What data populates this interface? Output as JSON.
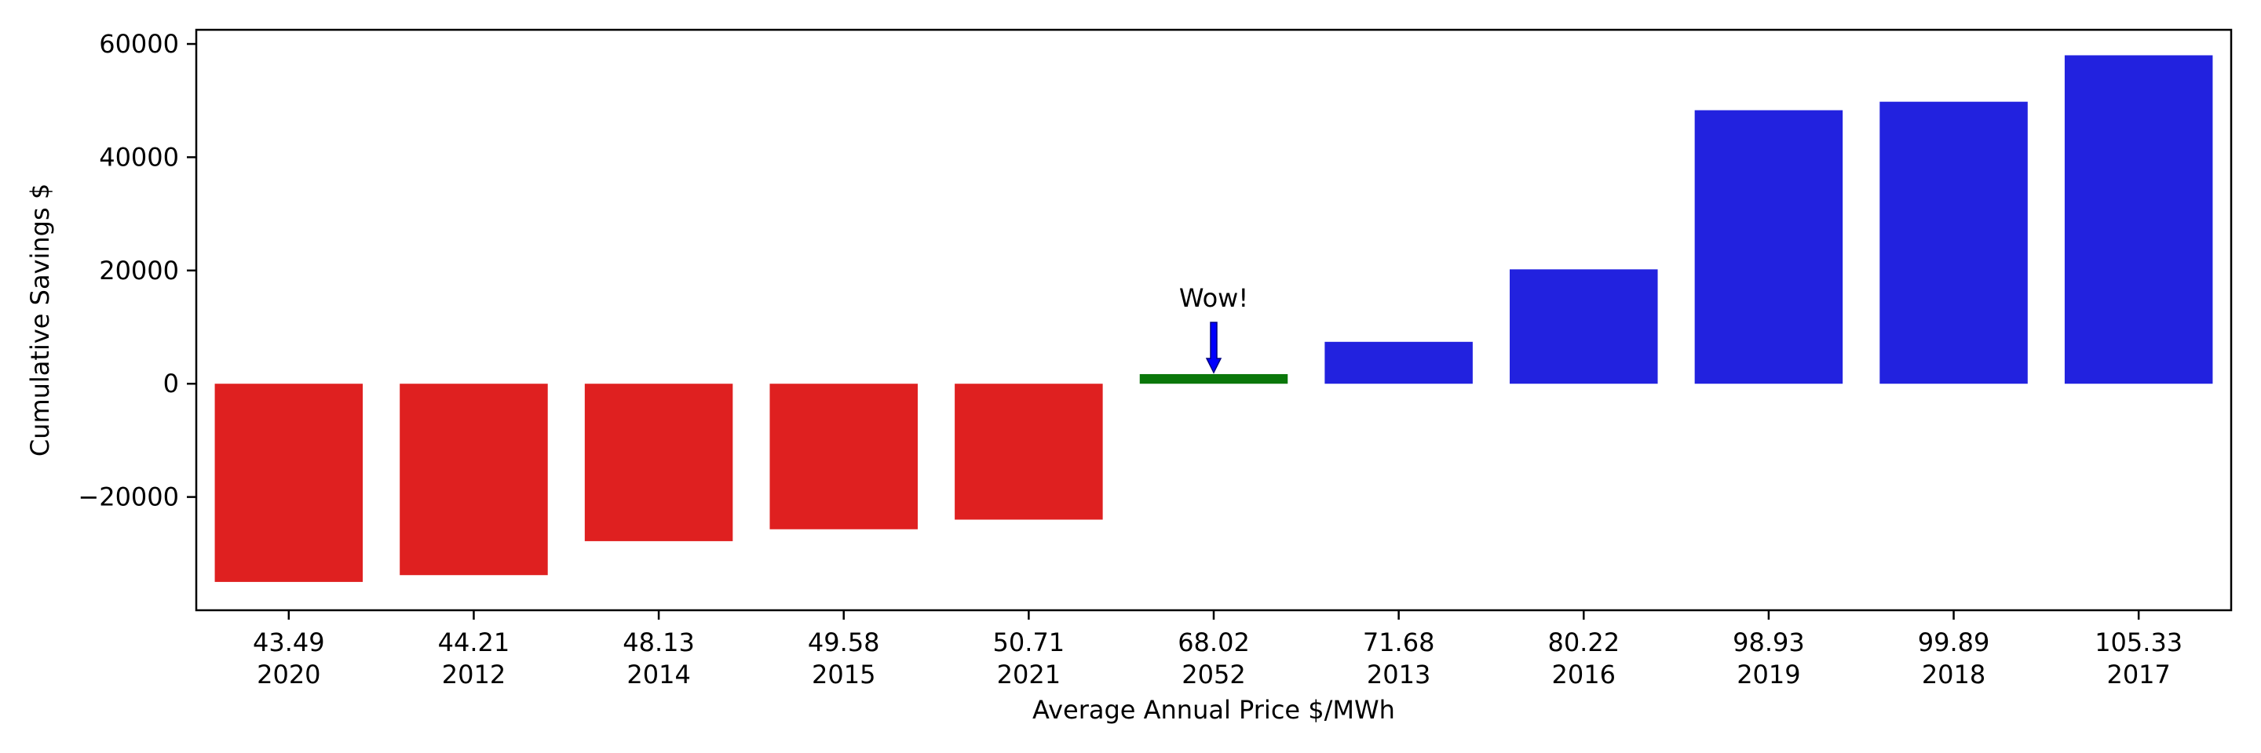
{
  "chart_data": {
    "type": "bar",
    "title": "",
    "xlabel": "Average Annual Price $/MWh",
    "ylabel": "Cumulative Savings $",
    "ylim": [
      -40000,
      62500
    ],
    "yticks": [
      -20000,
      0,
      20000,
      40000,
      60000
    ],
    "ytick_labels": [
      "−20000",
      "0",
      "20000",
      "40000",
      "60000"
    ],
    "grid": false,
    "categories": [
      {
        "price": "43.49",
        "year": "2020"
      },
      {
        "price": "44.21",
        "year": "2012"
      },
      {
        "price": "48.13",
        "year": "2014"
      },
      {
        "price": "49.58",
        "year": "2015"
      },
      {
        "price": "50.71",
        "year": "2021"
      },
      {
        "price": "68.02",
        "year": "2052"
      },
      {
        "price": "71.68",
        "year": "2013"
      },
      {
        "price": "80.22",
        "year": "2016"
      },
      {
        "price": "98.93",
        "year": "2019"
      },
      {
        "price": "99.89",
        "year": "2018"
      },
      {
        "price": "105.33",
        "year": "2017"
      }
    ],
    "values": [
      -35000,
      -33800,
      -27800,
      -25700,
      -24000,
      1700,
      7400,
      20200,
      48300,
      49800,
      58000
    ],
    "colors": [
      "#df2020",
      "#df2020",
      "#df2020",
      "#df2020",
      "#df2020",
      "#0a770a",
      "#2222df",
      "#2222df",
      "#2222df",
      "#2222df",
      "#2222df"
    ],
    "annotation": {
      "text": "Wow!",
      "target_index": 5,
      "arrow_color": "#0000ff"
    }
  }
}
